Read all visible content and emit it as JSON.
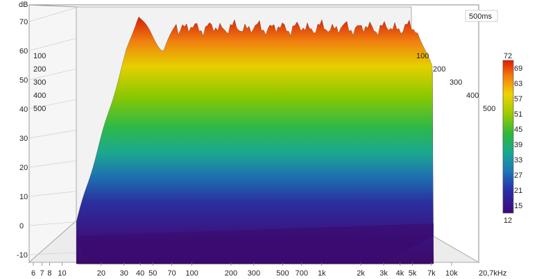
{
  "chart_data": {
    "type": "waterfall",
    "ylabel": "dB",
    "y_ticks": [
      "70",
      "60",
      "50",
      "40",
      "30",
      "20",
      "10",
      "0",
      "-10"
    ],
    "ylim": [
      -12,
      75
    ],
    "x_ticks": [
      "6",
      "7",
      "8",
      "10",
      "20",
      "30",
      "40",
      "50",
      "70",
      "100",
      "200",
      "300",
      "500",
      "700",
      "1k",
      "2k",
      "3k",
      "4k",
      "5k",
      "7k",
      "10k",
      "20,7kHz"
    ],
    "x_scale": "log",
    "xlim": [
      6,
      20700
    ],
    "time_ticks": [
      "100",
      "200",
      "300",
      "400",
      "500"
    ],
    "time_window": "500ms",
    "colorbar": {
      "ticks": [
        "72",
        "69",
        "63",
        "57",
        "51",
        "45",
        "39",
        "33",
        "27",
        "21",
        "15",
        "12"
      ],
      "range": [
        12,
        72
      ],
      "colors": [
        "#d81e05",
        "#f6b800",
        "#c8d400",
        "#3cb83c",
        "#1aa080",
        "#1fb0a8",
        "#1e6fb0",
        "#2a2fa0",
        "#3d0a7a"
      ]
    },
    "slices": 40,
    "grid": true
  }
}
